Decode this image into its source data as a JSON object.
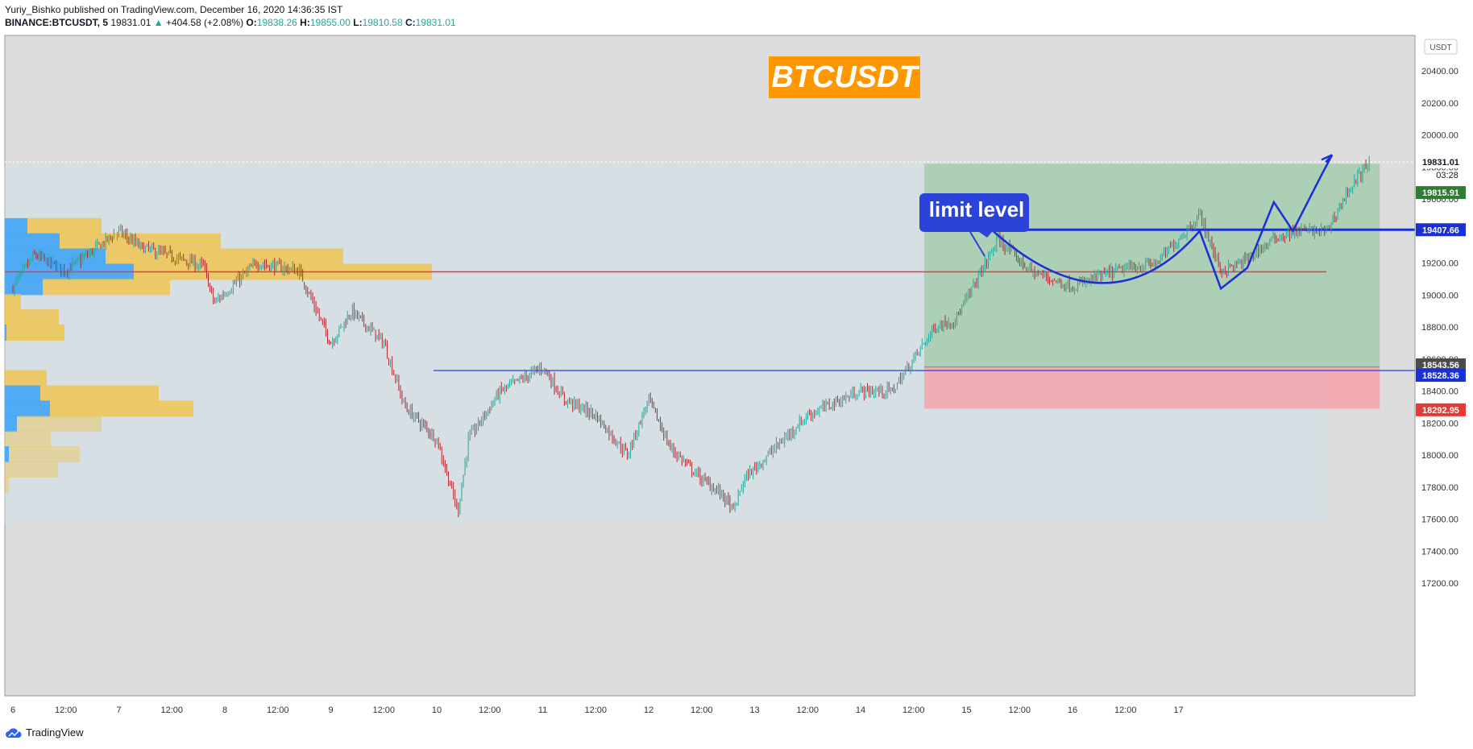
{
  "header": {
    "author": "Yuriy_Bishko",
    "published_text": "published on TradingView.com, December 16, 2020 14:36:35 IST",
    "symbol": "BINANCE:BTCUSDT, 5",
    "last": "19831.01",
    "change": "+404.58 (+2.08%)",
    "open_label": "O:",
    "open": "19838.26",
    "high_label": "H:",
    "high": "19855.00",
    "low_label": "L:",
    "low": "19810.58",
    "close_label": "C:",
    "close": "19831.01"
  },
  "footer": {
    "brand": "TradingView"
  },
  "colors": {
    "up": "#26a69a",
    "down": "#b22833",
    "accent_orange": "#ff9800",
    "pattern_blue": "#1a2fd6",
    "support_red": "#f23645",
    "target_green": "#9fc9a6",
    "stop_red": "#f7a3aa",
    "vp_yellow": "#efc452",
    "vp_blue": "#42a5f5"
  },
  "chart_data": {
    "type": "candlestick",
    "title": "BTCUSDT",
    "annotation": "limit level",
    "currency": "USDT",
    "ylim": [
      17000,
      20740
    ],
    "y_ticks": [
      "20400.00",
      "20200.00",
      "20000.00",
      "19800.00",
      "19600.00",
      "19400.00",
      "19200.00",
      "19000.00",
      "18800.00",
      "18600.00",
      "18400.00",
      "18200.00",
      "18000.00",
      "17800.00",
      "17600.00",
      "17400.00",
      "17200.00"
    ],
    "x_ticks": [
      "6",
      "12:00",
      "7",
      "12:00",
      "8",
      "12:00",
      "9",
      "12:00",
      "10",
      "12:00",
      "11",
      "12:00",
      "12",
      "12:00",
      "13",
      "12:00",
      "14",
      "12:00",
      "15",
      "12:00",
      "16",
      "12:00",
      "17"
    ],
    "price_path": [
      {
        "t": 0.0,
        "p": 19050
      },
      {
        "t": 0.2,
        "p": 19250
      },
      {
        "t": 0.5,
        "p": 19150
      },
      {
        "t": 1.0,
        "p": 19400
      },
      {
        "t": 1.2,
        "p": 19300
      },
      {
        "t": 1.8,
        "p": 19180
      },
      {
        "t": 1.9,
        "p": 18950
      },
      {
        "t": 2.3,
        "p": 19200
      },
      {
        "t": 2.7,
        "p": 19150
      },
      {
        "t": 3.0,
        "p": 18700
      },
      {
        "t": 3.2,
        "p": 18900
      },
      {
        "t": 3.5,
        "p": 18700
      },
      {
        "t": 3.7,
        "p": 18300
      },
      {
        "t": 4.0,
        "p": 18100
      },
      {
        "t": 4.2,
        "p": 17650
      },
      {
        "t": 4.3,
        "p": 18100
      },
      {
        "t": 4.6,
        "p": 18400
      },
      {
        "t": 5.0,
        "p": 18550
      },
      {
        "t": 5.2,
        "p": 18350
      },
      {
        "t": 5.5,
        "p": 18250
      },
      {
        "t": 5.8,
        "p": 18000
      },
      {
        "t": 6.0,
        "p": 18350
      },
      {
        "t": 6.2,
        "p": 18050
      },
      {
        "t": 6.5,
        "p": 17850
      },
      {
        "t": 6.7,
        "p": 17750
      },
      {
        "t": 6.8,
        "p": 17650
      },
      {
        "t": 6.9,
        "p": 17850
      },
      {
        "t": 7.2,
        "p": 18050
      },
      {
        "t": 7.5,
        "p": 18250
      },
      {
        "t": 8.0,
        "p": 18400
      },
      {
        "t": 8.3,
        "p": 18400
      },
      {
        "t": 8.5,
        "p": 18600
      },
      {
        "t": 8.7,
        "p": 18800
      },
      {
        "t": 8.9,
        "p": 18850
      },
      {
        "t": 9.1,
        "p": 19100
      },
      {
        "t": 9.3,
        "p": 19350
      },
      {
        "t": 9.6,
        "p": 19150
      },
      {
        "t": 10.0,
        "p": 19050
      },
      {
        "t": 10.4,
        "p": 19150
      },
      {
        "t": 10.8,
        "p": 19200
      },
      {
        "t": 11.2,
        "p": 19500
      },
      {
        "t": 11.4,
        "p": 19150
      },
      {
        "t": 11.6,
        "p": 19200
      },
      {
        "t": 11.9,
        "p": 19350
      },
      {
        "t": 12.1,
        "p": 19400
      },
      {
        "t": 12.4,
        "p": 19400
      },
      {
        "t": 12.6,
        "p": 19650
      },
      {
        "t": 12.8,
        "p": 19831
      }
    ],
    "levels": {
      "current": {
        "value": 19831.01,
        "label": "19831.01",
        "timer": "03:28"
      },
      "green": {
        "value": 19815.91,
        "label": "19815.91"
      },
      "limit": {
        "value": 19407.66,
        "label": "19407.66"
      },
      "support_red_line": {
        "value": 19145
      },
      "blue_support": {
        "value": 18528.36,
        "label": "18528.36"
      },
      "entry": {
        "value": 18543.56,
        "label": "18543.56"
      },
      "stop": {
        "value": 18292.95,
        "label": "18292.95"
      }
    },
    "position": {
      "start_t": 8.6,
      "end_t": 12.9,
      "target": 19820,
      "entry": 18550,
      "stop": 18290
    },
    "volume_profile": [
      {
        "price": 19430,
        "buy": 28,
        "sell": 92
      },
      {
        "price": 19335,
        "buy": 68,
        "sell": 200
      },
      {
        "price": 19240,
        "buy": 125,
        "sell": 295
      },
      {
        "price": 19145,
        "buy": 160,
        "sell": 370
      },
      {
        "price": 19050,
        "buy": 47,
        "sell": 158
      },
      {
        "price": 18955,
        "buy": 0,
        "sell": 20
      },
      {
        "price": 18860,
        "buy": 0,
        "sell": 67
      },
      {
        "price": 18765,
        "buy": 2,
        "sell": 72
      },
      {
        "price": 18480,
        "buy": 0,
        "sell": 52
      },
      {
        "price": 18385,
        "buy": 44,
        "sell": 147
      },
      {
        "price": 18290,
        "buy": 56,
        "sell": 178
      },
      {
        "price": 18195,
        "buy": 15,
        "sell": 105
      },
      {
        "price": 18100,
        "buy": 0,
        "sell": 57
      },
      {
        "price": 18005,
        "buy": 5,
        "sell": 88
      },
      {
        "price": 17910,
        "buy": 0,
        "sell": 66
      },
      {
        "price": 17815,
        "buy": 0,
        "sell": 5
      }
    ]
  }
}
